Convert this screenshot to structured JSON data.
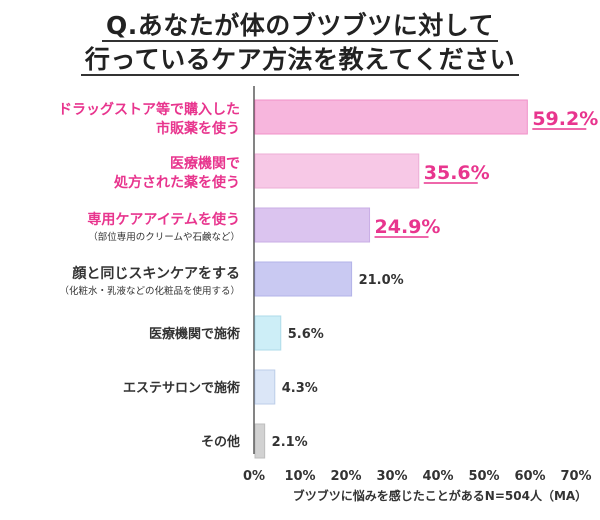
{
  "title_lines": [
    "Q.あなたが体のブツブツに対して",
    "行っているケア方法を教えてください"
  ],
  "chart_data": {
    "type": "bar",
    "orientation": "horizontal",
    "categories": [
      {
        "lines": [
          "ドラッグストア等で購入した",
          "市販薬を使う"
        ],
        "sub": "",
        "value": 59.2,
        "label": "59.2%",
        "color": "#f7b6dd",
        "edge": "#f090c8",
        "highlight": true
      },
      {
        "lines": [
          "医療機関で",
          "処方された薬を使う"
        ],
        "sub": "",
        "value": 35.6,
        "label": "35.6%",
        "color": "#f7c8e6",
        "edge": "#ecaed5",
        "highlight": true
      },
      {
        "lines": [
          "専用ケアアイテムを使う"
        ],
        "sub": "（部位専用のクリームや石鹸など）",
        "value": 24.9,
        "label": "24.9%",
        "color": "#dbc4ef",
        "edge": "#c9aee6",
        "highlight": true
      },
      {
        "lines": [
          "顔と同じスキンケアをする"
        ],
        "sub": "（化粧水・乳液などの化粧品を使用する）",
        "value": 21.0,
        "label": "21.0%",
        "color": "#c9c9f2",
        "edge": "#b3b3e8",
        "highlight": false
      },
      {
        "lines": [
          "医療機関で施術"
        ],
        "sub": "",
        "value": 5.6,
        "label": "5.6%",
        "color": "#cdeef7",
        "edge": "#aedbe9",
        "highlight": false
      },
      {
        "lines": [
          "エステサロンで施術"
        ],
        "sub": "",
        "value": 4.3,
        "label": "4.3%",
        "color": "#dbe6f7",
        "edge": "#bccde8",
        "highlight": false
      },
      {
        "lines": [
          "その他"
        ],
        "sub": "",
        "value": 2.1,
        "label": "2.1%",
        "color": "#d2d2d2",
        "edge": "#bdbdbd",
        "highlight": false
      }
    ],
    "xlim": [
      0,
      70
    ],
    "ticks": [
      "0%",
      "10%",
      "20%",
      "30%",
      "40%",
      "50%",
      "60%",
      "70%"
    ],
    "xlabel": "ブツブツに悩みを感じたことがあるN=504人（MA）",
    "highlight_color": "#e8358e",
    "grid": false
  }
}
